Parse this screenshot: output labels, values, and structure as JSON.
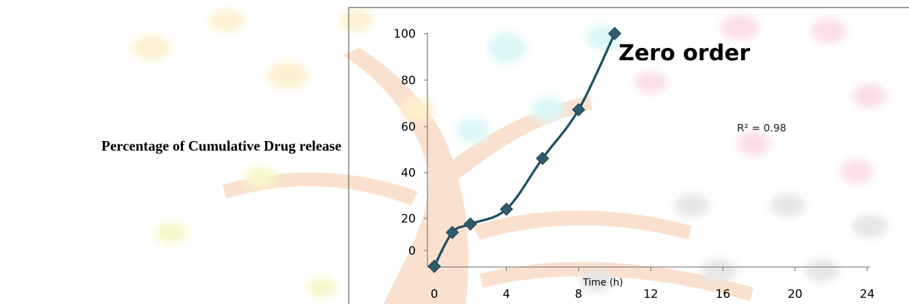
{
  "chart_data": {
    "type": "line",
    "title": "Zero order",
    "xlabel": "Time (h)",
    "ylabel": "Percentage of Cumulative Drug release",
    "annotation": "R² = 0.98",
    "x_ticks": [
      "0",
      "4",
      "8",
      "12",
      "16",
      "20",
      "24"
    ],
    "y_ticks": [
      "0",
      "20",
      "40",
      "60",
      "80",
      "100"
    ],
    "xlim": [
      0,
      24
    ],
    "ylim": [
      -10,
      100
    ],
    "series": [
      {
        "x": [
          0,
          1,
          2,
          4,
          6,
          8,
          10
        ],
        "y": [
          -10,
          6,
          10,
          17,
          41,
          64,
          100
        ]
      }
    ],
    "line_color": "#1f5163",
    "marker_color": "#2e5c6c",
    "marker": "diamond",
    "grid": false
  }
}
